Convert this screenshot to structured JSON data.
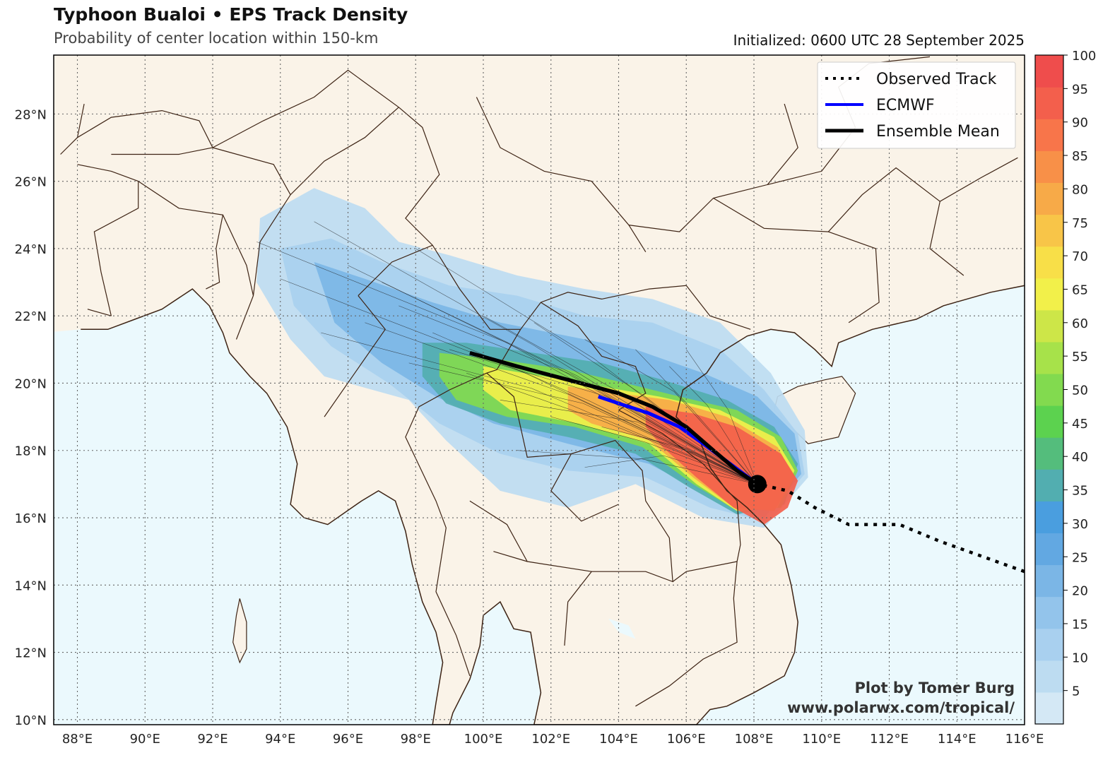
{
  "header": {
    "title": "Typhoon Bualoi • EPS Track Density",
    "subtitle": "Probability of center location within 150-km",
    "initialized": "Initialized: 0600 UTC 28 September 2025"
  },
  "map": {
    "lon_range": [
      87.3,
      116.0
    ],
    "lat_range": [
      9.85,
      29.75
    ],
    "lon_ticks": [
      "88°E",
      "90°E",
      "92°E",
      "94°E",
      "96°E",
      "98°E",
      "100°E",
      "102°E",
      "104°E",
      "106°E",
      "108°E",
      "110°E",
      "112°E",
      "114°E",
      "116°E"
    ],
    "lat_ticks": [
      "10°N",
      "12°N",
      "14°N",
      "16°N",
      "18°N",
      "20°N",
      "22°N",
      "24°N",
      "26°N",
      "28°N"
    ],
    "colors": {
      "land": "#faf3e8",
      "ocean": "#ebf9fd",
      "border": "#3d2314",
      "grid": "#666666"
    }
  },
  "chart_data": {
    "type": "heatmap",
    "title": "Typhoon Bualoi • EPS Track Density",
    "subtitle": "Probability of center location within 150-km",
    "colorbar": {
      "min": 0,
      "max": 100,
      "step": 5,
      "ticks": [
        "5",
        "10",
        "15",
        "20",
        "25",
        "30",
        "35",
        "40",
        "45",
        "50",
        "55",
        "60",
        "65",
        "70",
        "75",
        "80",
        "85",
        "90",
        "95",
        "100"
      ],
      "colors": [
        "#d4e8f5",
        "#bddcf1",
        "#a9d0ef",
        "#93c4eb",
        "#7bb6e6",
        "#62a8e2",
        "#4a9edf",
        "#52aeb0",
        "#54bd7c",
        "#5cd24f",
        "#82da4f",
        "#a7e24a",
        "#cde648",
        "#f2f04a",
        "#f8df48",
        "#f8c548",
        "#f7aa48",
        "#f89048",
        "#f8754a",
        "#f35f4c",
        "#ef4d4c"
      ]
    },
    "density_contours": [
      {
        "level": 5,
        "polygon": [
          [
            93.4,
            24.9
          ],
          [
            95.0,
            25.8
          ],
          [
            96.5,
            25.2
          ],
          [
            97.5,
            24.2
          ],
          [
            99.0,
            23.8
          ],
          [
            101.0,
            23.2
          ],
          [
            103.0,
            22.8
          ],
          [
            105.0,
            22.5
          ],
          [
            107.0,
            21.8
          ],
          [
            108.5,
            20.3
          ],
          [
            109.5,
            18.6
          ],
          [
            109.6,
            17.2
          ],
          [
            108.3,
            15.7
          ],
          [
            106.5,
            16.0
          ],
          [
            104.5,
            17.0
          ],
          [
            102.5,
            16.3
          ],
          [
            100.5,
            16.8
          ],
          [
            98.9,
            18.3
          ],
          [
            97.8,
            19.5
          ],
          [
            95.3,
            20.2
          ],
          [
            94.3,
            21.3
          ],
          [
            93.3,
            23.0
          ]
        ]
      },
      {
        "level": 10,
        "polygon": [
          [
            94.0,
            24.0
          ],
          [
            95.5,
            24.3
          ],
          [
            97.0,
            23.6
          ],
          [
            99.0,
            22.9
          ],
          [
            101.0,
            22.6
          ],
          [
            103.0,
            22.0
          ],
          [
            105.0,
            21.8
          ],
          [
            107.0,
            21.0
          ],
          [
            108.3,
            19.8
          ],
          [
            109.3,
            18.5
          ],
          [
            109.5,
            17.3
          ],
          [
            108.3,
            15.9
          ],
          [
            106.7,
            16.3
          ],
          [
            104.8,
            17.2
          ],
          [
            102.5,
            17.4
          ],
          [
            100.5,
            17.9
          ],
          [
            98.7,
            18.8
          ],
          [
            97.2,
            20.0
          ],
          [
            95.5,
            21.1
          ],
          [
            94.4,
            22.3
          ]
        ]
      },
      {
        "level": 20,
        "polygon": [
          [
            95.0,
            23.6
          ],
          [
            96.5,
            23.1
          ],
          [
            98.5,
            22.4
          ],
          [
            100.5,
            21.8
          ],
          [
            102.5,
            21.4
          ],
          [
            104.5,
            21.0
          ],
          [
            106.5,
            20.3
          ],
          [
            108.1,
            19.6
          ],
          [
            109.2,
            18.5
          ],
          [
            109.4,
            17.3
          ],
          [
            108.3,
            16.0
          ],
          [
            106.8,
            16.6
          ],
          [
            104.9,
            17.6
          ],
          [
            102.5,
            18.2
          ],
          [
            100.3,
            18.8
          ],
          [
            98.6,
            19.6
          ],
          [
            97.0,
            20.6
          ],
          [
            95.6,
            21.8
          ]
        ]
      },
      {
        "level": 35,
        "polygon": [
          [
            98.2,
            21.2
          ],
          [
            99.5,
            21.2
          ],
          [
            101.5,
            20.9
          ],
          [
            103.5,
            20.6
          ],
          [
            105.3,
            20.1
          ],
          [
            107.2,
            19.5
          ],
          [
            108.6,
            18.7
          ],
          [
            109.3,
            17.6
          ],
          [
            108.9,
            16.4
          ],
          [
            107.5,
            16.1
          ],
          [
            106.1,
            16.9
          ],
          [
            104.5,
            17.9
          ],
          [
            102.5,
            18.4
          ],
          [
            100.5,
            18.8
          ],
          [
            98.9,
            19.4
          ],
          [
            98.2,
            20.2
          ]
        ]
      },
      {
        "level": 50,
        "polygon": [
          [
            98.7,
            20.9
          ],
          [
            100.5,
            20.7
          ],
          [
            102.5,
            20.4
          ],
          [
            104.2,
            20.0
          ],
          [
            105.8,
            19.6
          ],
          [
            107.5,
            19.2
          ],
          [
            108.8,
            18.4
          ],
          [
            109.3,
            17.4
          ],
          [
            108.8,
            16.3
          ],
          [
            107.5,
            16.2
          ],
          [
            106.2,
            17.0
          ],
          [
            104.7,
            18.1
          ],
          [
            102.7,
            18.7
          ],
          [
            100.7,
            19.0
          ],
          [
            99.2,
            19.5
          ],
          [
            98.7,
            20.2
          ]
        ]
      },
      {
        "level": 65,
        "polygon": [
          [
            100.0,
            20.5
          ],
          [
            101.8,
            20.2
          ],
          [
            103.5,
            19.9
          ],
          [
            105.2,
            19.6
          ],
          [
            107.0,
            19.2
          ],
          [
            108.6,
            18.4
          ],
          [
            109.2,
            17.4
          ],
          [
            108.7,
            16.3
          ],
          [
            107.5,
            16.2
          ],
          [
            106.3,
            17.0
          ],
          [
            104.9,
            18.2
          ],
          [
            102.8,
            18.8
          ],
          [
            100.8,
            19.2
          ],
          [
            100.0,
            19.8
          ]
        ]
      },
      {
        "level": 80,
        "polygon": [
          [
            102.5,
            19.9
          ],
          [
            104.0,
            19.7
          ],
          [
            105.5,
            19.5
          ],
          [
            107.2,
            19.0
          ],
          [
            108.7,
            18.1
          ],
          [
            109.2,
            17.2
          ],
          [
            108.6,
            16.2
          ],
          [
            107.4,
            16.3
          ],
          [
            106.2,
            17.2
          ],
          [
            104.9,
            18.3
          ],
          [
            103.2,
            18.8
          ],
          [
            102.5,
            19.2
          ]
        ]
      },
      {
        "level": 95,
        "polygon": [
          [
            104.8,
            19.3
          ],
          [
            106.2,
            19.1
          ],
          [
            107.5,
            18.7
          ],
          [
            108.8,
            17.9
          ],
          [
            109.3,
            17.1
          ],
          [
            109.0,
            16.3
          ],
          [
            108.3,
            15.8
          ],
          [
            107.4,
            16.3
          ],
          [
            106.3,
            17.2
          ],
          [
            105.3,
            18.1
          ],
          [
            104.8,
            18.7
          ]
        ]
      }
    ],
    "series": [
      {
        "name": "Observed Track",
        "color": "#000000",
        "style": "dotted",
        "points": [
          [
            116.0,
            14.4
          ],
          [
            113.5,
            15.3
          ],
          [
            112.3,
            15.8
          ],
          [
            110.8,
            15.8
          ],
          [
            109.8,
            16.3
          ],
          [
            109.0,
            16.8
          ],
          [
            108.1,
            17.0
          ]
        ]
      },
      {
        "name": "ECMWF",
        "color": "#0000ff",
        "style": "solid",
        "points": [
          [
            108.1,
            17.0
          ],
          [
            107.3,
            17.6
          ],
          [
            106.5,
            18.2
          ],
          [
            105.8,
            18.7
          ],
          [
            104.9,
            19.1
          ],
          [
            104.0,
            19.4
          ],
          [
            103.4,
            19.6
          ]
        ]
      },
      {
        "name": "Ensemble Mean",
        "color": "#000000",
        "style": "solid",
        "points": [
          [
            108.1,
            17.0
          ],
          [
            107.5,
            17.4
          ],
          [
            106.8,
            18.0
          ],
          [
            106.0,
            18.7
          ],
          [
            105.0,
            19.3
          ],
          [
            104.0,
            19.7
          ],
          [
            102.5,
            20.1
          ],
          [
            101.0,
            20.5
          ],
          [
            99.6,
            20.9
          ]
        ]
      }
    ],
    "current_position": [
      108.1,
      17.0
    ],
    "member_track_ends": [
      [
        93.3,
        24.2
      ],
      [
        94.0,
        23.1
      ],
      [
        95.0,
        24.8
      ],
      [
        95.2,
        21.5
      ],
      [
        96.0,
        23.5
      ],
      [
        97.0,
        23.0
      ],
      [
        97.5,
        22.3
      ],
      [
        98.5,
        21.5
      ],
      [
        98.0,
        24.0
      ],
      [
        99.0,
        21.0
      ],
      [
        99.5,
        20.3
      ],
      [
        100.0,
        22.0
      ],
      [
        100.5,
        19.5
      ],
      [
        101.5,
        21.8
      ],
      [
        102.0,
        19.0
      ],
      [
        103.0,
        21.3
      ],
      [
        103.5,
        18.7
      ],
      [
        104.5,
        21.0
      ],
      [
        105.5,
        20.5
      ],
      [
        106.0,
        21.0
      ],
      [
        101.0,
        18.0
      ],
      [
        103.0,
        17.5
      ],
      [
        104.7,
        18.4
      ],
      [
        96.5,
        21.8
      ],
      [
        97.8,
        20.6
      ]
    ],
    "legend": {
      "position": "top-right",
      "entries": [
        "Observed Track",
        "ECMWF",
        "Ensemble Mean"
      ]
    }
  },
  "credits": {
    "line1": "Plot by Tomer Burg",
    "line2": "www.polarwx.com/tropical/"
  }
}
